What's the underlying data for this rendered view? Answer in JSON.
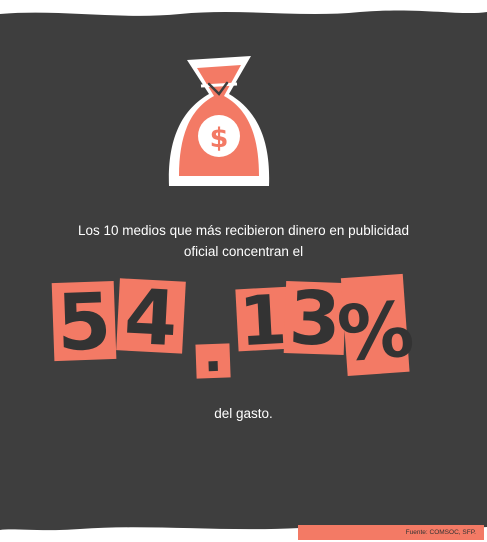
{
  "colors": {
    "background": "#3e3e3e",
    "accent": "#f37a65",
    "text": "#ffffff",
    "glyph": "#333333"
  },
  "icon": {
    "name": "money-bag-icon",
    "symbol": "$"
  },
  "headline": "Los 10 medios que más recibieron dinero en publicidad oficial concentran el",
  "stat": {
    "characters": [
      "5",
      "4",
      ".",
      "1",
      "3",
      "%"
    ],
    "value": "54.13%"
  },
  "tail": "del gasto.",
  "source": "Fuente: COMSOC, SFP."
}
